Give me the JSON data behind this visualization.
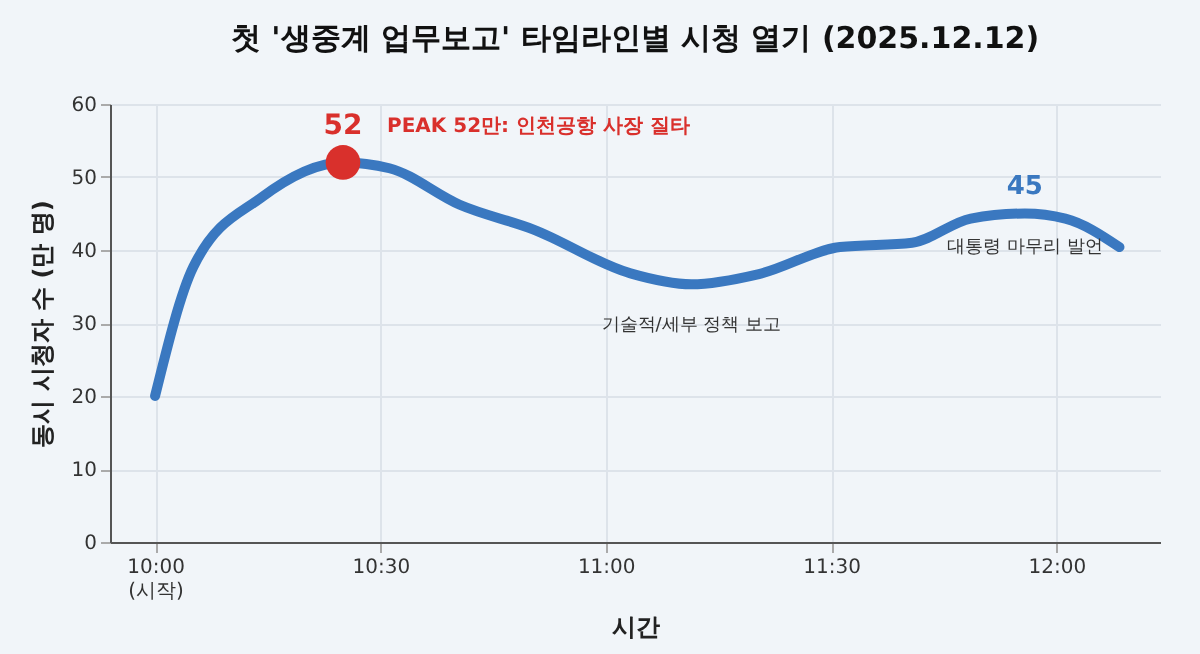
{
  "chart_data": {
    "type": "line",
    "title": "첫 '생중계 업무보고' 타임라인별 시청 열기 (2025.12.12)",
    "xlabel": "시간",
    "ylabel": "동시 시청자 수 (만 명)",
    "xlim": [
      9.9,
      12.23
    ],
    "ylim": [
      0,
      60
    ],
    "xticks": [
      {
        "value": 10,
        "label": "10:00\n(시작)"
      },
      {
        "value": 10.5,
        "label": "10:30"
      },
      {
        "value": 11,
        "label": "11:00"
      },
      {
        "value": 11.5,
        "label": "11:30"
      },
      {
        "value": 12,
        "label": "12:00"
      }
    ],
    "yticks": [
      0,
      10,
      20,
      30,
      40,
      50,
      60
    ],
    "grid": true,
    "line_style": "solid",
    "series": [
      {
        "color": "#3a78c0",
        "x": [
          10.0,
          10.085,
          10.236,
          10.417,
          10.52,
          10.676,
          10.84,
          11.055,
          11.19,
          11.34,
          11.52,
          11.68,
          11.81,
          11.93,
          12.02,
          12.14
        ],
        "values": [
          20,
          37.7,
          47.2,
          52,
          51.2,
          46.2,
          42.8,
          36.8,
          35.3,
          36.7,
          40.4,
          41,
          44.3,
          45,
          44.3,
          40.4
        ]
      },
      {
        "type": "scatter",
        "color": "#d9302c",
        "x": [
          10.417
        ],
        "values": [
          52
        ]
      }
    ],
    "annotations": [
      {
        "text": "52",
        "x": 10.417,
        "y": 52
      },
      {
        "text": "PEAK 52만: 인천공항 사장 질타",
        "x": 10.417,
        "y": 52
      },
      {
        "text": "기술적/세부 정책 보고",
        "x": 11.19,
        "y": 35.3
      },
      {
        "text": "45",
        "x": 11.93,
        "y": 45
      },
      {
        "text": "대통령 마무리 발언",
        "x": 11.93,
        "y": 45
      }
    ]
  }
}
